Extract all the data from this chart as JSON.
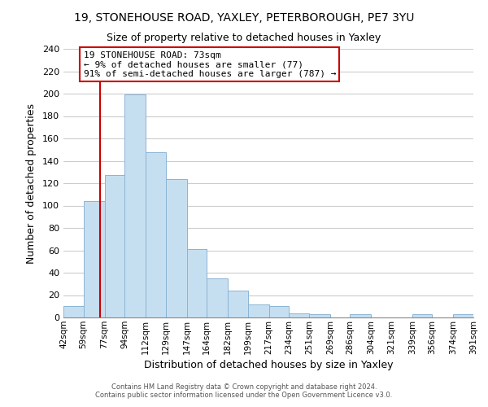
{
  "title": "19, STONEHOUSE ROAD, YAXLEY, PETERBOROUGH, PE7 3YU",
  "subtitle": "Size of property relative to detached houses in Yaxley",
  "xlabel": "Distribution of detached houses by size in Yaxley",
  "ylabel": "Number of detached properties",
  "bar_edges": [
    42,
    59,
    77,
    94,
    112,
    129,
    147,
    164,
    182,
    199,
    217,
    234,
    251,
    269,
    286,
    304,
    321,
    339,
    356,
    374,
    391
  ],
  "bar_heights": [
    10,
    104,
    127,
    199,
    148,
    124,
    61,
    35,
    24,
    12,
    10,
    4,
    3,
    0,
    3,
    0,
    0,
    3,
    0,
    3
  ],
  "bar_color": "#c6dff0",
  "bar_edgecolor": "#8ab4d4",
  "vline_x": 73,
  "vline_color": "#cc0000",
  "annotation_title": "19 STONEHOUSE ROAD: 73sqm",
  "annotation_line1": "← 9% of detached houses are smaller (77)",
  "annotation_line2": "91% of semi-detached houses are larger (787) →",
  "annotation_box_color": "#ffffff",
  "annotation_border_color": "#cc0000",
  "ylim": [
    0,
    240
  ],
  "yticks": [
    0,
    20,
    40,
    60,
    80,
    100,
    120,
    140,
    160,
    180,
    200,
    220,
    240
  ],
  "tick_labels": [
    "42sqm",
    "59sqm",
    "77sqm",
    "94sqm",
    "112sqm",
    "129sqm",
    "147sqm",
    "164sqm",
    "182sqm",
    "199sqm",
    "217sqm",
    "234sqm",
    "251sqm",
    "269sqm",
    "286sqm",
    "304sqm",
    "321sqm",
    "339sqm",
    "356sqm",
    "374sqm",
    "391sqm"
  ],
  "footer1": "Contains HM Land Registry data © Crown copyright and database right 2024.",
  "footer2": "Contains public sector information licensed under the Open Government Licence v3.0.",
  "background_color": "#ffffff",
  "grid_color": "#cccccc"
}
